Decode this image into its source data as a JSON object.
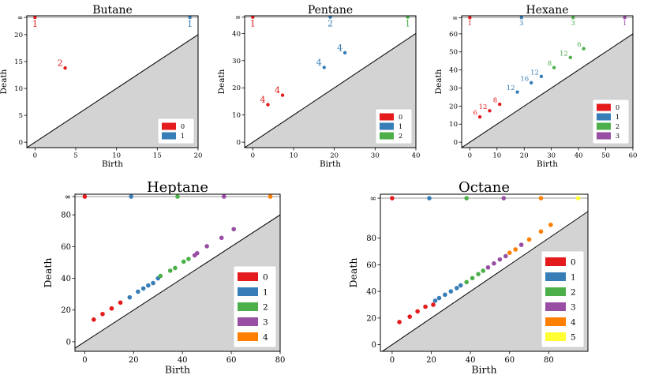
{
  "palette": {
    "0": "#e41a1c",
    "1": "#377eb8",
    "2": "#4daf4a",
    "3": "#984ea3",
    "4": "#ff7f00",
    "5": "#ffff33",
    "diag_fill": "#d3d3d3",
    "inf_line": "#999999"
  },
  "chart_data": [
    {
      "type": "scatter",
      "subtype": "persistence-diagram",
      "title": "Butane",
      "xlabel": "Birth",
      "ylabel": "Death",
      "xlim": [
        -1,
        20
      ],
      "ylim": [
        -1,
        23.5
      ],
      "xticks": [
        0,
        5,
        10,
        15,
        20
      ],
      "yticks": [
        0,
        5,
        10,
        15,
        20
      ],
      "inf_tick_label": "∞",
      "infinity_value": 23.2,
      "legend": [
        "0",
        "1"
      ],
      "legend_position": "bottom-right",
      "points": [
        {
          "dim": 0,
          "birth": 0,
          "death": "inf",
          "label": "1"
        },
        {
          "dim": 1,
          "birth": 19,
          "death": "inf",
          "label": "1"
        },
        {
          "dim": 0,
          "birth": 3.7,
          "death": 13.8,
          "label": "2"
        }
      ]
    },
    {
      "type": "scatter",
      "subtype": "persistence-diagram",
      "title": "Pentane",
      "xlabel": "Birth",
      "ylabel": "Death",
      "xlim": [
        -2,
        40
      ],
      "ylim": [
        -2,
        46.5
      ],
      "xticks": [
        0,
        10,
        20,
        30,
        40
      ],
      "yticks": [
        0,
        10,
        20,
        30,
        40
      ],
      "inf_tick_label": "∞",
      "infinity_value": 46,
      "legend": [
        "0",
        "1",
        "2"
      ],
      "legend_position": "bottom-right",
      "points": [
        {
          "dim": 0,
          "birth": 0,
          "death": "inf",
          "label": "1"
        },
        {
          "dim": 1,
          "birth": 19,
          "death": "inf",
          "label": "2"
        },
        {
          "dim": 2,
          "birth": 38,
          "death": "inf",
          "label": "1"
        },
        {
          "dim": 0,
          "birth": 3.7,
          "death": 13.8,
          "label": "4"
        },
        {
          "dim": 0,
          "birth": 7.3,
          "death": 17.3,
          "label": "4"
        },
        {
          "dim": 1,
          "birth": 17.5,
          "death": 27.5,
          "label": "4"
        },
        {
          "dim": 1,
          "birth": 22.6,
          "death": 32.9,
          "label": "4"
        }
      ]
    },
    {
      "type": "scatter",
      "subtype": "persistence-diagram",
      "title": "Hexane",
      "xlabel": "Birth",
      "ylabel": "Death",
      "xlim": [
        -3,
        60
      ],
      "ylim": [
        -3,
        70
      ],
      "xticks": [
        0,
        10,
        20,
        30,
        40,
        50,
        60
      ],
      "yticks": [
        0,
        10,
        20,
        30,
        40,
        50,
        60
      ],
      "inf_tick_label": "∞",
      "infinity_value": 69,
      "legend": [
        "0",
        "1",
        "2",
        "3"
      ],
      "legend_position": "bottom-right",
      "points": [
        {
          "dim": 0,
          "birth": 0,
          "death": "inf",
          "label": "1"
        },
        {
          "dim": 1,
          "birth": 19,
          "death": "inf",
          "label": "3"
        },
        {
          "dim": 2,
          "birth": 38,
          "death": "inf",
          "label": "3"
        },
        {
          "dim": 3,
          "birth": 57,
          "death": "inf",
          "label": "1"
        },
        {
          "dim": 0,
          "birth": 3.7,
          "death": 14,
          "label": "6"
        },
        {
          "dim": 0,
          "birth": 7.3,
          "death": 17.4,
          "label": "12"
        },
        {
          "dim": 0,
          "birth": 11,
          "death": 21,
          "label": "8"
        },
        {
          "dim": 1,
          "birth": 17.5,
          "death": 27.8,
          "label": "12"
        },
        {
          "dim": 1,
          "birth": 22.6,
          "death": 32.9,
          "label": "16"
        },
        {
          "dim": 1,
          "birth": 26.3,
          "death": 36.4,
          "label": "12"
        },
        {
          "dim": 2,
          "birth": 31,
          "death": 41.3,
          "label": "8"
        },
        {
          "dim": 2,
          "birth": 37,
          "death": 46.9,
          "label": "12"
        },
        {
          "dim": 2,
          "birth": 41.9,
          "death": 51.8,
          "label": "6"
        }
      ]
    },
    {
      "type": "scatter",
      "subtype": "persistence-diagram",
      "title": "Heptane",
      "xlabel": "Birth",
      "ylabel": "Death",
      "xlim": [
        -4,
        80
      ],
      "ylim": [
        -6,
        93
      ],
      "xticks": [
        0,
        20,
        40,
        60,
        80
      ],
      "yticks": [
        0,
        20,
        40,
        60,
        80
      ],
      "inf_tick_label": "∞",
      "infinity_value": 91.5,
      "legend": [
        "0",
        "1",
        "2",
        "3",
        "4"
      ],
      "legend_position": "bottom-right",
      "points": [
        {
          "dim": 0,
          "birth": 0,
          "death": "inf"
        },
        {
          "dim": 1,
          "birth": 19,
          "death": "inf"
        },
        {
          "dim": 2,
          "birth": 38,
          "death": "inf"
        },
        {
          "dim": 3,
          "birth": 57,
          "death": "inf"
        },
        {
          "dim": 4,
          "birth": 76,
          "death": "inf"
        },
        {
          "dim": 0,
          "birth": 3.7,
          "death": 14
        },
        {
          "dim": 0,
          "birth": 7.3,
          "death": 17.5
        },
        {
          "dim": 0,
          "birth": 11,
          "death": 21
        },
        {
          "dim": 0,
          "birth": 14.6,
          "death": 24.7
        },
        {
          "dim": 1,
          "birth": 18.4,
          "death": 28
        },
        {
          "dim": 1,
          "birth": 21.8,
          "death": 31.6
        },
        {
          "dim": 1,
          "birth": 24,
          "death": 33.6
        },
        {
          "dim": 1,
          "birth": 26,
          "death": 35.5
        },
        {
          "dim": 1,
          "birth": 28,
          "death": 37
        },
        {
          "dim": 1,
          "birth": 30,
          "death": 40
        },
        {
          "dim": 2,
          "birth": 31,
          "death": 41.5
        },
        {
          "dim": 2,
          "birth": 35,
          "death": 44.8
        },
        {
          "dim": 2,
          "birth": 37,
          "death": 46.5
        },
        {
          "dim": 2,
          "birth": 40.5,
          "death": 50.5
        },
        {
          "dim": 2,
          "birth": 42.5,
          "death": 52.2
        },
        {
          "dim": 3,
          "birth": 45,
          "death": 54.5
        },
        {
          "dim": 3,
          "birth": 46,
          "death": 55.8
        },
        {
          "dim": 3,
          "birth": 50,
          "death": 60.2
        },
        {
          "dim": 3,
          "birth": 56,
          "death": 65.5
        },
        {
          "dim": 3,
          "birth": 61,
          "death": 71
        }
      ]
    },
    {
      "type": "scatter",
      "subtype": "persistence-diagram",
      "title": "Octane",
      "xlabel": "Birth",
      "ylabel": "Death",
      "xlim": [
        -6,
        100
      ],
      "ylim": [
        -5,
        113
      ],
      "xticks": [
        0,
        20,
        40,
        60,
        80
      ],
      "yticks": [
        0,
        20,
        40,
        60,
        80
      ],
      "inf_tick_label": "∞",
      "infinity_value": 110,
      "legend": [
        "0",
        "1",
        "2",
        "3",
        "4",
        "5"
      ],
      "legend_position": "bottom-right",
      "points": [
        {
          "dim": 0,
          "birth": 0,
          "death": "inf"
        },
        {
          "dim": 1,
          "birth": 19,
          "death": "inf"
        },
        {
          "dim": 2,
          "birth": 38,
          "death": "inf"
        },
        {
          "dim": 3,
          "birth": 57,
          "death": "inf"
        },
        {
          "dim": 4,
          "birth": 76,
          "death": "inf"
        },
        {
          "dim": 5,
          "birth": 95,
          "death": "inf"
        },
        {
          "dim": 0,
          "birth": 3.7,
          "death": 17
        },
        {
          "dim": 0,
          "birth": 9,
          "death": 21
        },
        {
          "dim": 0,
          "birth": 13,
          "death": 25
        },
        {
          "dim": 0,
          "birth": 17,
          "death": 28.5
        },
        {
          "dim": 0,
          "birth": 21,
          "death": 30
        },
        {
          "dim": 1,
          "birth": 22,
          "death": 33
        },
        {
          "dim": 1,
          "birth": 24,
          "death": 35
        },
        {
          "dim": 1,
          "birth": 27,
          "death": 37.5
        },
        {
          "dim": 1,
          "birth": 30,
          "death": 40
        },
        {
          "dim": 1,
          "birth": 33,
          "death": 42.5
        },
        {
          "dim": 1,
          "birth": 35,
          "death": 44.5
        },
        {
          "dim": 2,
          "birth": 38,
          "death": 47
        },
        {
          "dim": 2,
          "birth": 41,
          "death": 50
        },
        {
          "dim": 2,
          "birth": 44,
          "death": 53
        },
        {
          "dim": 2,
          "birth": 46.5,
          "death": 55.5
        },
        {
          "dim": 3,
          "birth": 49,
          "death": 58
        },
        {
          "dim": 3,
          "birth": 52,
          "death": 61
        },
        {
          "dim": 3,
          "birth": 55,
          "death": 64
        },
        {
          "dim": 3,
          "birth": 58,
          "death": 66.5
        },
        {
          "dim": 4,
          "birth": 60,
          "death": 69
        },
        {
          "dim": 4,
          "birth": 63,
          "death": 71.5
        },
        {
          "dim": 3,
          "birth": 66,
          "death": 75
        },
        {
          "dim": 4,
          "birth": 70,
          "death": 79
        },
        {
          "dim": 4,
          "birth": 76,
          "death": 85
        },
        {
          "dim": 4,
          "birth": 81,
          "death": 90
        }
      ]
    }
  ]
}
